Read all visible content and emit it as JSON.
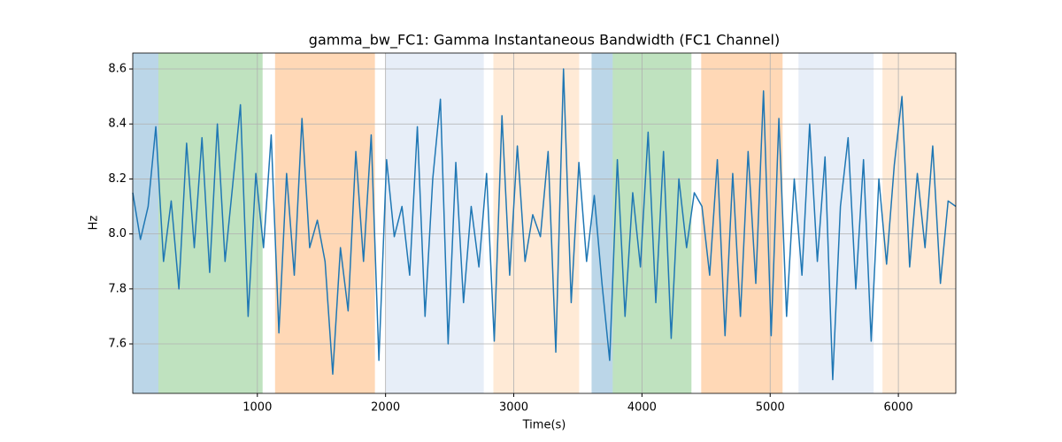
{
  "chart_data": {
    "type": "line",
    "title": "gamma_bw_FC1: Gamma Instantaneous Bandwidth (FC1 Channel)",
    "x_label": "Time(s)",
    "y_label": "Hz",
    "color": "#1f77b4",
    "x": [
      28,
      88,
      148,
      208,
      268,
      328,
      388,
      448,
      508,
      568,
      628,
      688,
      748,
      808,
      868,
      928,
      988,
      1048,
      1108,
      1168,
      1228,
      1288,
      1348,
      1408,
      1468,
      1528,
      1588,
      1648,
      1708,
      1768,
      1828,
      1888,
      1948,
      2008,
      2068,
      2128,
      2188,
      2248,
      2308,
      2368,
      2428,
      2488,
      2548,
      2608,
      2668,
      2728,
      2788,
      2848,
      2908,
      2968,
      3028,
      3088,
      3148,
      3208,
      3268,
      3328,
      3388,
      3448,
      3508,
      3568,
      3628,
      3688,
      3748,
      3808,
      3868,
      3928,
      3988,
      4048,
      4108,
      4168,
      4228,
      4288,
      4348,
      4408,
      4468,
      4528,
      4588,
      4648,
      4708,
      4768,
      4828,
      4888,
      4948,
      5008,
      5068,
      5128,
      5188,
      5248,
      5308,
      5368,
      5428,
      5488,
      5548,
      5608,
      5668,
      5728,
      5788,
      5848,
      5908,
      5968,
      6028,
      6088,
      6148,
      6208,
      6268,
      6328,
      6388,
      6448
    ],
    "values": [
      8.15,
      7.98,
      8.1,
      8.39,
      7.9,
      8.12,
      7.8,
      8.33,
      7.95,
      8.35,
      7.86,
      8.4,
      7.9,
      8.18,
      8.47,
      7.7,
      8.22,
      7.95,
      8.36,
      7.64,
      8.22,
      7.85,
      8.42,
      7.95,
      8.05,
      7.9,
      7.49,
      7.95,
      7.72,
      8.3,
      7.9,
      8.36,
      7.54,
      8.27,
      7.99,
      8.1,
      7.85,
      8.39,
      7.7,
      8.2,
      8.49,
      7.6,
      8.26,
      7.75,
      8.1,
      7.88,
      8.22,
      7.61,
      8.43,
      7.85,
      8.32,
      7.9,
      8.07,
      7.99,
      8.3,
      7.57,
      8.6,
      7.75,
      8.26,
      7.9,
      8.14,
      7.82,
      7.54,
      8.27,
      7.7,
      8.15,
      7.88,
      8.37,
      7.75,
      8.3,
      7.62,
      8.2,
      7.95,
      8.15,
      8.1,
      7.85,
      8.27,
      7.63,
      8.22,
      7.7,
      8.3,
      7.82,
      8.52,
      7.63,
      8.42,
      7.7,
      8.2,
      7.85,
      8.4,
      7.9,
      8.28,
      7.47,
      8.1,
      8.35,
      7.8,
      8.27,
      7.61,
      8.2,
      7.89,
      8.25,
      8.5,
      7.88,
      8.22,
      7.95,
      8.32,
      7.82,
      8.12,
      8.1
    ],
    "spans": [
      {
        "start": 28,
        "end": 228,
        "color": "#1f77b4"
      },
      {
        "start": 228,
        "end": 1041,
        "color": "#2ca02c"
      },
      {
        "start": 1138,
        "end": 1917,
        "color": "#ff7f0e"
      },
      {
        "start": 2000,
        "end": 2766,
        "color": "#aec7e8"
      },
      {
        "start": 2841,
        "end": 3510,
        "color": "#ffbb78"
      },
      {
        "start": 3607,
        "end": 3772,
        "color": "#1f77b4"
      },
      {
        "start": 3772,
        "end": 4386,
        "color": "#2ca02c"
      },
      {
        "start": 4462,
        "end": 5097,
        "color": "#ff7f0e"
      },
      {
        "start": 5221,
        "end": 5807,
        "color": "#aec7e8"
      },
      {
        "start": 5876,
        "end": 6448,
        "color": "#ffbb78"
      }
    ],
    "xlim": [
      28,
      6448
    ],
    "ylim": [
      7.42,
      8.658
    ],
    "xticks": [
      1000,
      2000,
      3000,
      4000,
      5000,
      6000
    ],
    "yticks": [
      7.6,
      7.8,
      {
        "value": 8,
        "label": "8.0"
      },
      8.2,
      8.4,
      8.6
    ],
    "grid": true
  }
}
